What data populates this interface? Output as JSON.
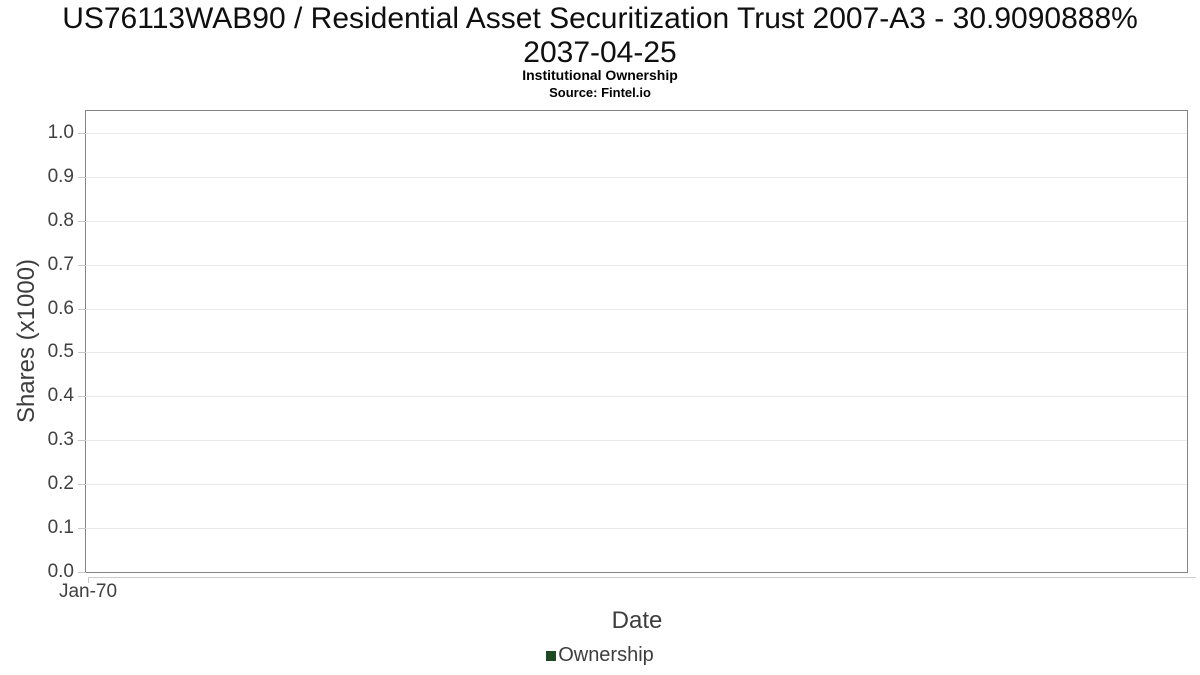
{
  "header": {
    "title_line1": "US76113WAB90 / Residential Asset Securitization Trust 2007-A3 - 30.9090888%",
    "title_line2": "2037-04-25",
    "subtitle": "Institutional Ownership",
    "source": "Source: Fintel.io"
  },
  "chart_data": {
    "type": "line",
    "title": "US76113WAB90 / Residential Asset Securitization Trust 2007-A3 - 30.9090888% 2037-04-25",
    "subtitle": "Institutional Ownership",
    "source": "Source: Fintel.io",
    "xlabel": "Date",
    "ylabel": "Shares (x1000)",
    "ylim": [
      0.0,
      1.05
    ],
    "grid": true,
    "yticks": [
      {
        "value": 0.0,
        "label": "0.0"
      },
      {
        "value": 0.1,
        "label": "0.1"
      },
      {
        "value": 0.2,
        "label": "0.2"
      },
      {
        "value": 0.3,
        "label": "0.3"
      },
      {
        "value": 0.4,
        "label": "0.4"
      },
      {
        "value": 0.5,
        "label": "0.5"
      },
      {
        "value": 0.6,
        "label": "0.6"
      },
      {
        "value": 0.7,
        "label": "0.7"
      },
      {
        "value": 0.8,
        "label": "0.8"
      },
      {
        "value": 0.9,
        "label": "0.9"
      },
      {
        "value": 1.0,
        "label": "1.0"
      }
    ],
    "xticks": [
      {
        "label": "Jan-70",
        "position": 0
      }
    ],
    "series": [
      {
        "name": "Ownership",
        "color": "#1e4a23",
        "points": []
      }
    ],
    "legend": {
      "position": "bottom",
      "entries": [
        {
          "label": "Ownership",
          "color": "#1e4a23"
        }
      ]
    },
    "colors": {
      "title": "#0f0f0f",
      "grid": "#e9e9e9",
      "plot_border": "#848484",
      "axis_line": "#cccccc",
      "tick_mark": "#c9c9c9",
      "tick_label": "#404040",
      "axis_label": "#3d3d3d"
    }
  }
}
